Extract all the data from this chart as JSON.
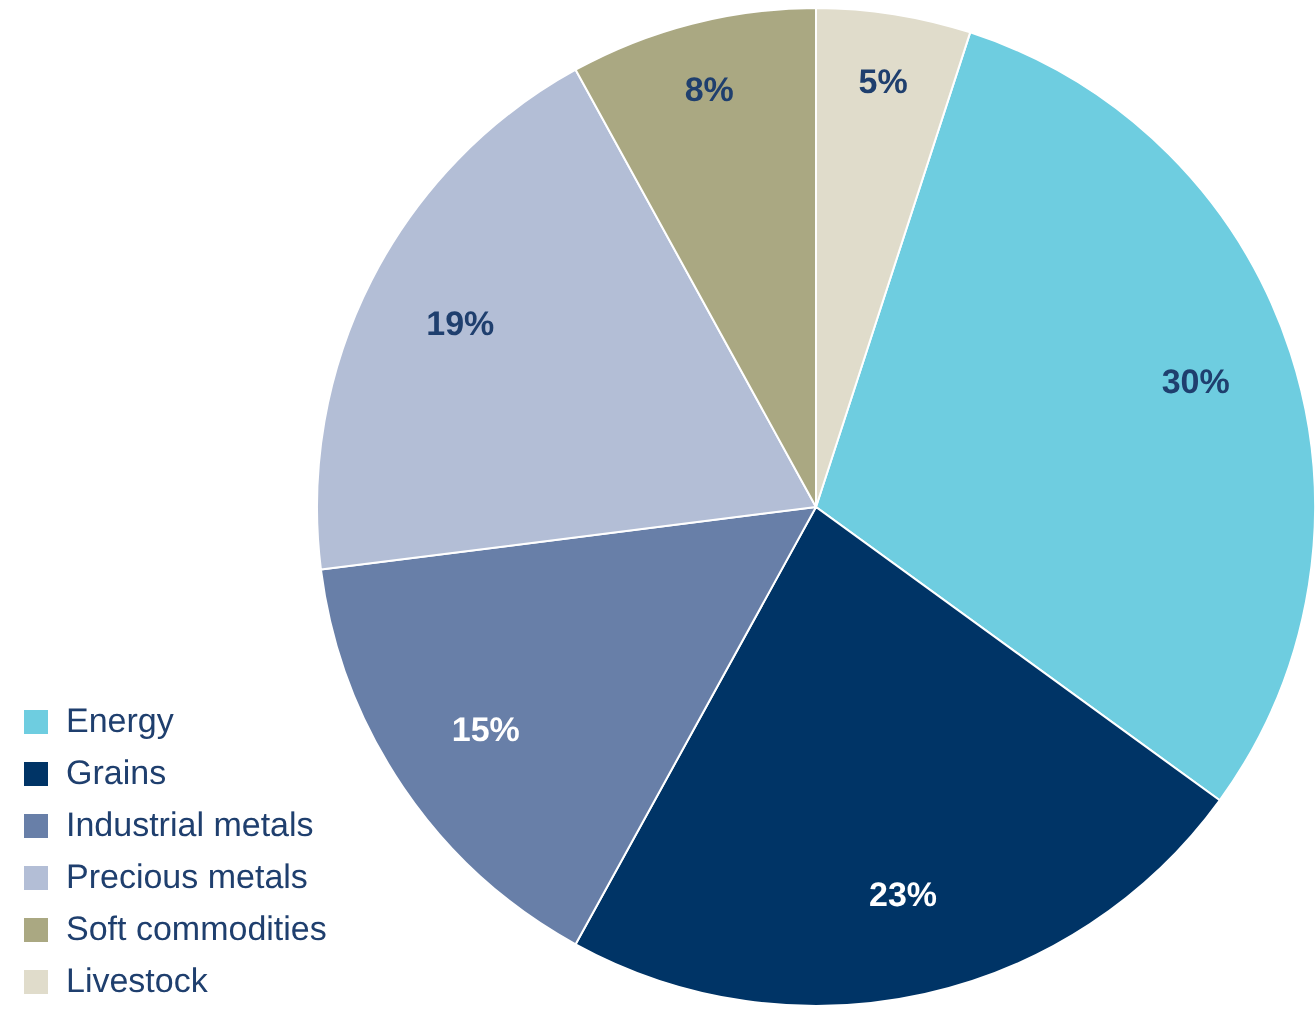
{
  "chart_data": {
    "type": "pie",
    "categories": [
      "Energy",
      "Grains",
      "Industrial metals",
      "Precious metals",
      "Soft commodities",
      "Livestock"
    ],
    "values": [
      30,
      23,
      15,
      19,
      8,
      5
    ],
    "colors": [
      "#6ecde0",
      "#003466",
      "#687fa8",
      "#b3bed6",
      "#aaa882",
      "#e0dccb"
    ],
    "value_labels": [
      "30%",
      "23%",
      "15%",
      "19%",
      "8%",
      "5%"
    ],
    "legend": "bottom left"
  }
}
